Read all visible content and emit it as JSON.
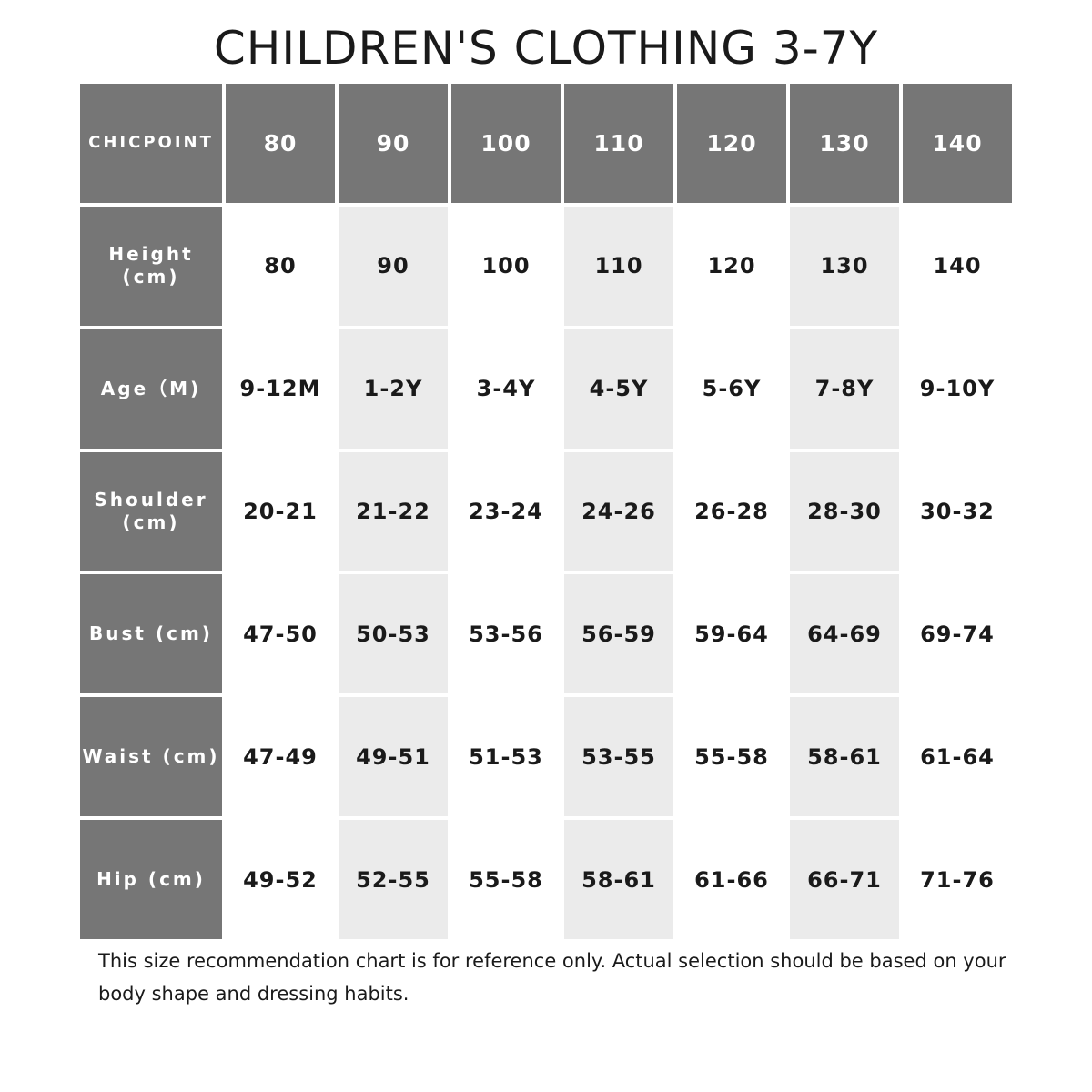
{
  "title": "CHILDREN'S CLOTHING 3-7Y",
  "footer": "This size recommendation chart is for reference only. Actual selection should be based on your body shape and dressing habits.",
  "colors": {
    "header_bg": "#767676",
    "alt_cell_bg": "#ebebeb",
    "cell_bg": "#ffffff"
  },
  "chart_data": {
    "type": "table",
    "title": "CHILDREN'S CLOTHING 3-7Y",
    "corner_label": "CHICPOINT",
    "columns": [
      "80",
      "90",
      "100",
      "110",
      "120",
      "130",
      "140"
    ],
    "rows": [
      {
        "label": "Height\n(cm)",
        "values": [
          "80",
          "90",
          "100",
          "110",
          "120",
          "130",
          "140"
        ]
      },
      {
        "label": "Age（M)",
        "values": [
          "9-12M",
          "1-2Y",
          "3-4Y",
          "4-5Y",
          "5-6Y",
          "7-8Y",
          "9-10Y"
        ]
      },
      {
        "label": "Shoulder\n(cm)",
        "values": [
          "20-21",
          "21-22",
          "23-24",
          "24-26",
          "26-28",
          "28-30",
          "30-32"
        ]
      },
      {
        "label": "Bust (cm)",
        "values": [
          "47-50",
          "50-53",
          "53-56",
          "56-59",
          "59-64",
          "64-69",
          "69-74"
        ]
      },
      {
        "label": "Waist (cm)",
        "values": [
          "47-49",
          "49-51",
          "51-53",
          "53-55",
          "55-58",
          "58-61",
          "61-64"
        ]
      },
      {
        "label": "Hip (cm)",
        "values": [
          "49-52",
          "52-55",
          "55-58",
          "58-61",
          "61-66",
          "66-71",
          "71-76"
        ]
      }
    ]
  }
}
